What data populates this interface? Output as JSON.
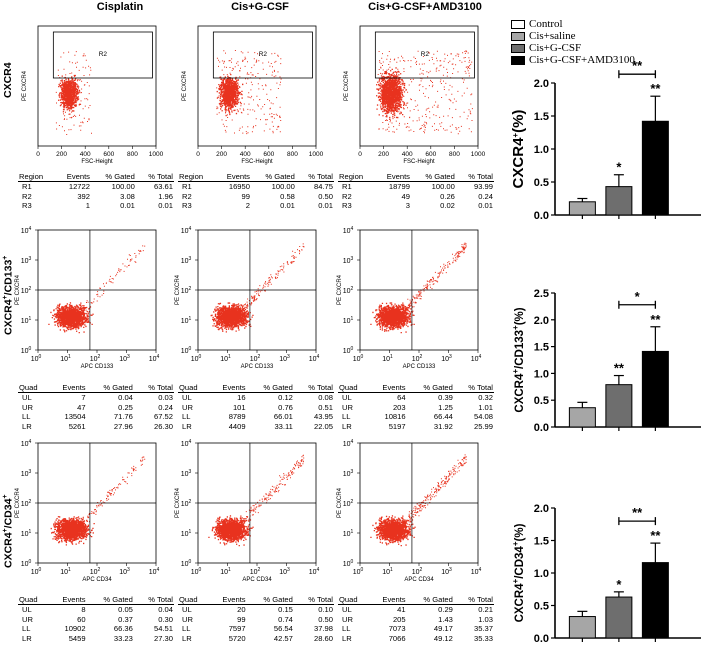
{
  "column_titles": [
    "Cisplatin",
    "Cis+G-CSF",
    "Cis+G-CSF+AMD3100"
  ],
  "row_labels": [
    {
      "main": "CXCR4",
      "sup1": "",
      "mid": "",
      "sup2": ""
    },
    {
      "main": "CXCR4",
      "sup1": "+",
      "mid": "/CD133",
      "sup2": "+"
    },
    {
      "main": "CXCR4",
      "sup1": "+",
      "mid": "/CD34",
      "sup2": "+"
    }
  ],
  "flow_panels": {
    "row1_x_label": "FSC-Height",
    "row1_y_label": "PE CXCR4",
    "row1_gate_label": "R2",
    "row1_ticks": [
      "0",
      "200",
      "400",
      "600",
      "800",
      "1000"
    ],
    "row2_x_label": "APC CD133",
    "row3_x_label": "APC CD34",
    "quad_y_label": "PE CXCR4",
    "log_base": "10",
    "log_exps": [
      "0",
      "1",
      "2",
      "3",
      "4"
    ]
  },
  "tables": {
    "row1": {
      "headers": [
        "Region",
        "Events",
        "% Gated",
        "% Total"
      ],
      "panels": [
        [
          [
            "R1",
            "12722",
            "100.00",
            "63.61"
          ],
          [
            "R2",
            "392",
            "3.08",
            "1.96"
          ],
          [
            "R3",
            "1",
            "0.01",
            "0.01"
          ]
        ],
        [
          [
            "R1",
            "16950",
            "100.00",
            "84.75"
          ],
          [
            "R2",
            "99",
            "0.58",
            "0.50"
          ],
          [
            "R3",
            "2",
            "0.01",
            "0.01"
          ]
        ],
        [
          [
            "R1",
            "18799",
            "100.00",
            "93.99"
          ],
          [
            "R2",
            "49",
            "0.26",
            "0.24"
          ],
          [
            "R3",
            "3",
            "0.02",
            "0.01"
          ]
        ]
      ]
    },
    "row2": {
      "headers": [
        "Quad",
        "Events",
        "% Gated",
        "% Total"
      ],
      "panels": [
        [
          [
            "UL",
            "7",
            "0.04",
            "0.03"
          ],
          [
            "UR",
            "47",
            "0.25",
            "0.24"
          ],
          [
            "LL",
            "13504",
            "71.76",
            "67.52"
          ],
          [
            "LR",
            "5261",
            "27.96",
            "26.30"
          ]
        ],
        [
          [
            "UL",
            "16",
            "0.12",
            "0.08"
          ],
          [
            "UR",
            "101",
            "0.76",
            "0.51"
          ],
          [
            "LL",
            "8789",
            "66.01",
            "43.95"
          ],
          [
            "LR",
            "4409",
            "33.11",
            "22.05"
          ]
        ],
        [
          [
            "UL",
            "64",
            "0.39",
            "0.32"
          ],
          [
            "UR",
            "203",
            "1.25",
            "1.01"
          ],
          [
            "LL",
            "10816",
            "66.44",
            "54.08"
          ],
          [
            "LR",
            "5197",
            "31.92",
            "25.99"
          ]
        ]
      ]
    },
    "row3": {
      "headers": [
        "Quad",
        "Events",
        "% Gated",
        "% Total"
      ],
      "panels": [
        [
          [
            "UL",
            "8",
            "0.05",
            "0.04"
          ],
          [
            "UR",
            "60",
            "0.37",
            "0.30"
          ],
          [
            "LL",
            "10902",
            "66.36",
            "54.51"
          ],
          [
            "LR",
            "5459",
            "33.23",
            "27.30"
          ]
        ],
        [
          [
            "UL",
            "20",
            "0.15",
            "0.10"
          ],
          [
            "UR",
            "99",
            "0.74",
            "0.50"
          ],
          [
            "LL",
            "7597",
            "56.54",
            "37.98"
          ],
          [
            "LR",
            "5720",
            "42.57",
            "28.60"
          ]
        ],
        [
          [
            "UL",
            "41",
            "0.29",
            "0.21"
          ],
          [
            "UR",
            "205",
            "1.43",
            "1.03"
          ],
          [
            "LL",
            "7073",
            "49.17",
            "35.37"
          ],
          [
            "LR",
            "7066",
            "49.12",
            "35.33"
          ]
        ]
      ]
    }
  },
  "legend": [
    {
      "label": "Control",
      "color": "#ffffff"
    },
    {
      "label": "Cis+saline",
      "color": "#a6a6a6"
    },
    {
      "label": "Cis+G-CSF",
      "color": "#6e6e6e"
    },
    {
      "label": "Cis+G-CSF+AMD3100",
      "color": "#000000"
    }
  ],
  "chart_data": [
    {
      "type": "bar",
      "categories": [
        "Cis+saline",
        "Cis+G-CSF",
        "Cis+G-CSF+AMD3100"
      ],
      "values": [
        0.2,
        0.43,
        1.42
      ],
      "errors": [
        0.05,
        0.18,
        0.38
      ],
      "colors": [
        "#a6a6a6",
        "#6e6e6e",
        "#000000"
      ],
      "bar_marks": [
        "",
        "*",
        "**"
      ],
      "bracket": {
        "from": 1,
        "to": 2,
        "label": "**"
      },
      "ylabel_main": "CXCR4",
      "ylabel_sup": "+",
      "ylabel_suffix": "(%)",
      "ylim": [
        0,
        2.0
      ],
      "ticks": [
        "0.0",
        "0.5",
        "1.0",
        "1.5",
        "2.0"
      ]
    },
    {
      "type": "bar",
      "categories": [
        "Cis+saline",
        "Cis+G-CSF",
        "Cis+G-CSF+AMD3100"
      ],
      "values": [
        0.36,
        0.79,
        1.41
      ],
      "errors": [
        0.1,
        0.17,
        0.46
      ],
      "colors": [
        "#a6a6a6",
        "#6e6e6e",
        "#000000"
      ],
      "bar_marks": [
        "",
        "**",
        "**"
      ],
      "bracket": {
        "from": 1,
        "to": 2,
        "label": "*"
      },
      "ylabel_main": "CXCR4",
      "ylabel_sup": "+",
      "ylabel_mid": "/CD133",
      "ylabel_sup2": "+",
      "ylabel_suffix": "(%)",
      "ylim": [
        0,
        2.5
      ],
      "ticks": [
        "0.0",
        "0.5",
        "1.0",
        "1.5",
        "2.0",
        "2.5"
      ]
    },
    {
      "type": "bar",
      "categories": [
        "Cis+saline",
        "Cis+G-CSF",
        "Cis+G-CSF+AMD3100"
      ],
      "values": [
        0.33,
        0.63,
        1.16
      ],
      "errors": [
        0.08,
        0.08,
        0.3
      ],
      "colors": [
        "#a6a6a6",
        "#6e6e6e",
        "#000000"
      ],
      "bar_marks": [
        "",
        "*",
        "**"
      ],
      "bracket": {
        "from": 1,
        "to": 2,
        "label": "**"
      },
      "ylabel_main": "CXCR4",
      "ylabel_sup": "+",
      "ylabel_mid": "/CD34",
      "ylabel_sup2": "+",
      "ylabel_suffix": "(%)",
      "ylim": [
        0,
        2.0
      ],
      "ticks": [
        "0.0",
        "0.5",
        "1.0",
        "1.5",
        "2.0"
      ]
    }
  ]
}
